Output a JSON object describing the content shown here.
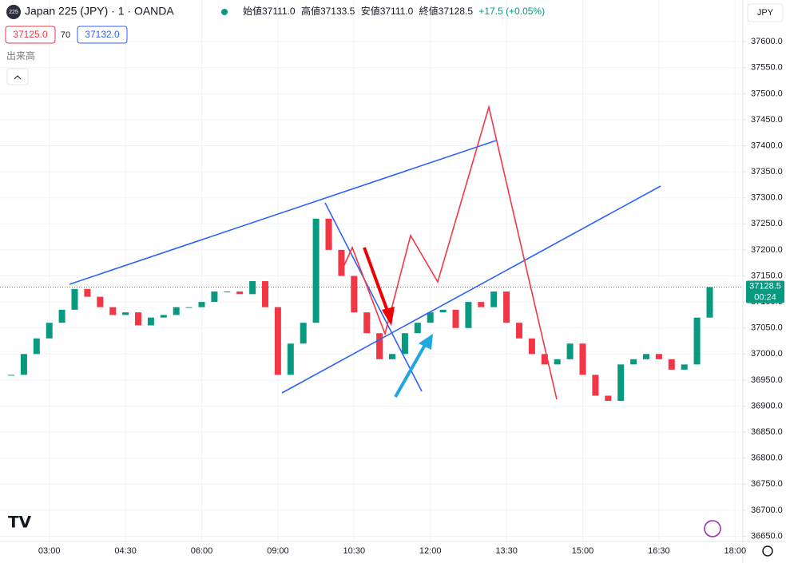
{
  "header": {
    "symbol": "Japan 225 (JPY) · 1 · OANDA",
    "badge": "225",
    "stats": [
      "始値37111.0",
      "高値37133.5",
      "安値37111.0",
      "終値37128.5",
      "+17.5 (+0.05%)"
    ],
    "sell": "37125.0",
    "spread": "70",
    "buy": "37132.0",
    "volume": "出来高",
    "currency": "JPY",
    "countdown": "00:24"
  },
  "chart_data": {
    "type": "candlestick",
    "categories": [
      null,
      null,
      null,
      "03:00",
      null,
      null,
      null,
      null,
      null,
      "04:30",
      null,
      null,
      null,
      null,
      null,
      "06:00",
      null,
      null,
      null,
      null,
      null,
      "09:00",
      null,
      null,
      null,
      null,
      null,
      "10:30",
      null,
      null,
      null,
      null,
      null,
      "12:00",
      null,
      null,
      null,
      null,
      null,
      "13:30",
      null,
      null,
      null,
      null,
      null,
      "15:00",
      null,
      null,
      null,
      null,
      null,
      "16:30",
      null,
      null,
      null,
      null,
      null,
      "18:00"
    ],
    "values": [
      36960,
      37000,
      37030,
      37060,
      37085,
      37125,
      37110,
      37090,
      37075,
      37080,
      37055,
      37070,
      37075,
      37090,
      37090,
      37100,
      37120,
      37120,
      37115,
      37140,
      37090,
      36960,
      37020,
      37060,
      37260,
      37200,
      37150,
      37080,
      37040,
      36990,
      37000,
      37040,
      37060,
      37080,
      37085,
      37050,
      37100,
      37090,
      37120,
      37060,
      37030,
      37000,
      36980,
      36990,
      37020,
      36960,
      36920,
      36910,
      36980,
      36990,
      37000,
      36990,
      36970,
      36980,
      37070,
      37128.5,
      null,
      null
    ],
    "up_color": "#089981",
    "down_color": "#f23645",
    "ylim": [
      36640,
      37680
    ],
    "yticks": [
      {
        "value": 36650,
        "label": "36650.0"
      },
      {
        "value": 36700,
        "label": "36700.0"
      },
      {
        "value": 36750,
        "label": "36750.0"
      },
      {
        "value": 36800,
        "label": "36800.0"
      },
      {
        "value": 36850,
        "label": "36850.0"
      },
      {
        "value": 36900,
        "label": "36900.0"
      },
      {
        "value": 36950,
        "label": "36950.0"
      },
      {
        "value": 37000,
        "label": "37000.0"
      },
      {
        "value": 37050,
        "label": "37050.0"
      },
      {
        "value": 37100,
        "label": "37100.0"
      },
      {
        "value": 37150,
        "label": "37150.0"
      },
      {
        "value": 37200,
        "label": "37200.0"
      },
      {
        "value": 37250,
        "label": "37250.0"
      },
      {
        "value": 37300,
        "label": "37300.0"
      },
      {
        "value": 37350,
        "label": "37350.0"
      },
      {
        "value": 37400,
        "label": "37400.0"
      },
      {
        "value": 37450,
        "label": "37450.0"
      },
      {
        "value": 37500,
        "label": "37500.0"
      },
      {
        "value": 37550,
        "label": "37550.0"
      },
      {
        "value": 37600,
        "label": "37600.0"
      }
    ],
    "grid": true
  }
}
